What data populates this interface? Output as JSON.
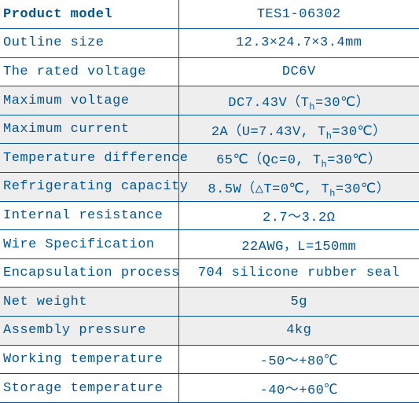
{
  "table": {
    "border_color": "#005599",
    "text_color": "#005599",
    "alt_bg": "#eeeeee",
    "columns": [
      "label",
      "value"
    ],
    "rows": [
      {
        "label": "Product model",
        "value": "TES1-06302"
      },
      {
        "label": "Outline size",
        "value": "12.3×24.7×3.4mm"
      },
      {
        "label": "The rated voltage",
        "value": "DC6V"
      },
      {
        "label": "Maximum voltage",
        "value": "DC7.43V（T_h=30℃）"
      },
      {
        "label": "Maximum current",
        "value": "2A（U=7.43V, T_h=30℃）"
      },
      {
        "label": "Temperature difference",
        "value": "65℃（Qc=0, T_h=30℃）"
      },
      {
        "label": "Refrigerating capacity",
        "value": "8.5W（△T=0℃, T_h=30℃）"
      },
      {
        "label": "Internal resistance",
        "value": "2.7～3.2Ω"
      },
      {
        "label": "Wire Specification",
        "value": "22AWG，L=150mm"
      },
      {
        "label": "Encapsulation process",
        "value": "704 silicone rubber seal"
      },
      {
        "label": "Net weight",
        "value": "5g"
      },
      {
        "label": "Assembly pressure",
        "value": "4kg"
      },
      {
        "label": "Working temperature",
        "value": "-50～+80℃"
      },
      {
        "label": "Storage temperature",
        "value": "-40～+60℃"
      }
    ],
    "sub_token": "_h",
    "alt_row_indices": [
      3,
      4,
      5,
      6,
      10,
      11
    ]
  }
}
